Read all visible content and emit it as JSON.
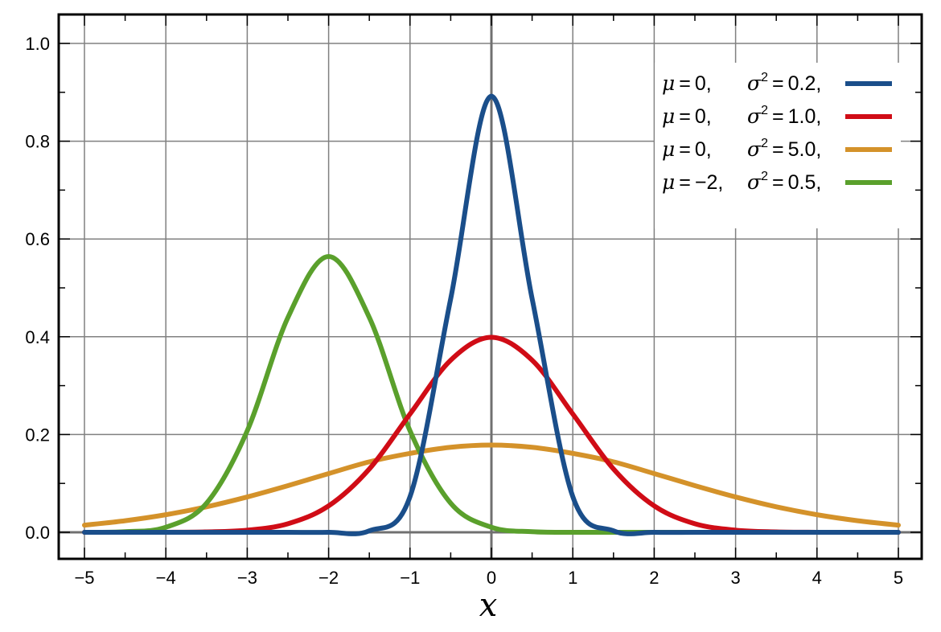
{
  "chart_data": {
    "type": "line",
    "title": "",
    "xlabel": "x",
    "ylabel": "",
    "xlim": [
      -5,
      5
    ],
    "ylim": [
      -0.055,
      1.06
    ],
    "grid": true,
    "legend_position": "top-right",
    "xticks": [
      -5,
      -4,
      -3,
      -2,
      -1,
      0,
      1,
      2,
      3,
      4,
      5
    ],
    "xtick_labels": [
      "−5",
      "−4",
      "−3",
      "−2",
      "−1",
      "0",
      "1",
      "2",
      "3",
      "4",
      "5"
    ],
    "yticks": [
      0.0,
      0.2,
      0.4,
      0.6,
      0.8,
      1.0
    ],
    "ytick_labels": [
      "0.0",
      "0.2",
      "0.4",
      "0.6",
      "0.8",
      "1.0"
    ],
    "x": [
      -5,
      -4.5,
      -4,
      -3.5,
      -3,
      -2.5,
      -2,
      -1.5,
      -1,
      -0.5,
      0,
      0.5,
      1,
      1.5,
      2,
      2.5,
      3,
      3.5,
      4,
      4.5,
      5
    ],
    "series": [
      {
        "mu_text": "0,",
        "sigma2_text": "0.2,",
        "color": "#1a4e8a",
        "values": [
          0,
          0,
          0,
          0,
          0,
          0,
          0,
          0.003,
          0.073,
          0.478,
          0.892,
          0.478,
          0.073,
          0.003,
          0,
          0,
          0,
          0,
          0,
          0,
          0
        ]
      },
      {
        "mu_text": "0,",
        "sigma2_text": "1.0,",
        "color": "#d00c16",
        "values": [
          0,
          0,
          0.0001,
          0.0009,
          0.0044,
          0.0175,
          0.054,
          0.1295,
          0.242,
          0.3521,
          0.3989,
          0.3521,
          0.242,
          0.1295,
          0.054,
          0.0175,
          0.0044,
          0.0009,
          0.0001,
          0,
          0
        ]
      },
      {
        "mu_text": "0,",
        "sigma2_text": "5.0,",
        "color": "#d4922a",
        "values": [
          0.0146,
          0.0237,
          0.036,
          0.0522,
          0.0723,
          0.0954,
          0.1201,
          0.1441,
          0.1614,
          0.1739,
          0.1784,
          0.1739,
          0.1614,
          0.1441,
          0.1201,
          0.0954,
          0.0723,
          0.0522,
          0.036,
          0.0237,
          0.0146
        ]
      },
      {
        "mu_text": "−2,",
        "sigma2_text": "0.5,",
        "color": "#5aa02c",
        "values": [
          0,
          0.0012,
          0.0103,
          0.0595,
          0.2076,
          0.4394,
          0.5642,
          0.4394,
          0.2076,
          0.0595,
          0.0103,
          0.0012,
          0,
          0,
          0,
          0,
          0,
          0,
          0,
          0,
          0
        ]
      }
    ]
  }
}
